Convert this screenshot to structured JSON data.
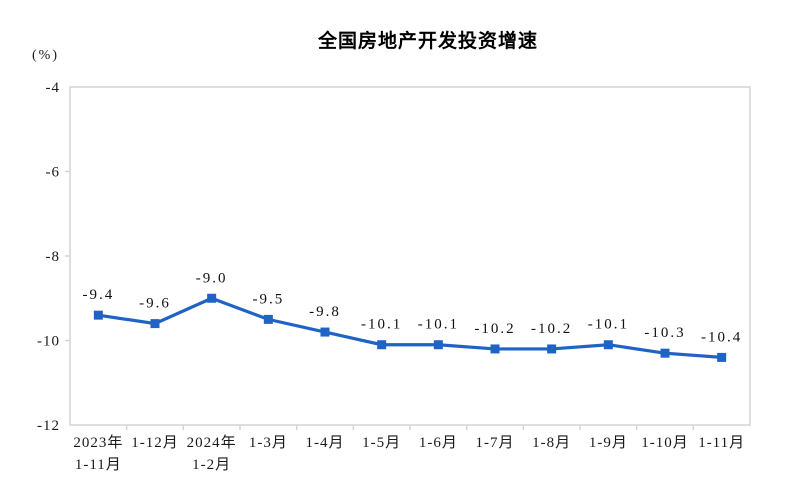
{
  "chart_data": {
    "type": "line",
    "title": "全国房地产开发投资增速",
    "unit_label": "(%)",
    "categories": [
      "2023年\n1-11月",
      "1-12月",
      "2024年\n1-2月",
      "1-3月",
      "1-4月",
      "1-5月",
      "1-6月",
      "1-7月",
      "1-8月",
      "1-9月",
      "1-10月",
      "1-11月"
    ],
    "values": [
      -9.4,
      -9.6,
      -9.0,
      -9.5,
      -9.8,
      -10.1,
      -10.1,
      -10.2,
      -10.2,
      -10.1,
      -10.3,
      -10.4
    ],
    "data_labels": [
      "-9.4",
      "-9.6",
      "-9.0",
      "-9.5",
      "-9.8",
      "-10.1",
      "-10.1",
      "-10.2",
      "-10.2",
      "-10.1",
      "-10.3",
      "-10.4"
    ],
    "ylim": [
      -12,
      -4
    ],
    "yticks": [
      -4,
      -6,
      -8,
      -10,
      -12
    ],
    "ytick_labels": [
      "-4",
      "-6",
      "-8",
      "-10",
      "-12"
    ],
    "xlabel": "",
    "ylabel": "",
    "grid": false,
    "legend": "none",
    "line_color": "#1f63c6",
    "frame_color": "#d4d4d4",
    "text_color": "#1a1a1a"
  }
}
